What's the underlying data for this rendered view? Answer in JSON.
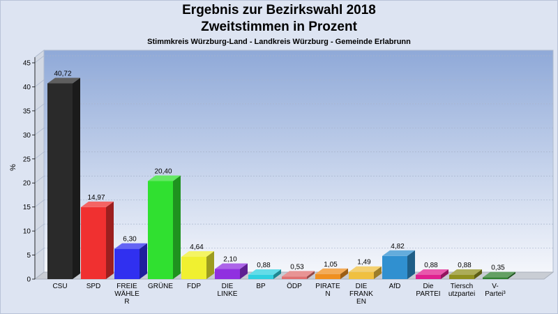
{
  "chart_data": {
    "type": "bar",
    "title": "Ergebnis zur Bezirkswahl 2018",
    "subtitle": "Zweitstimmen in Prozent",
    "subtitle2": "Stimmkreis Würzburg-Land - Landkreis Würzburg - Gemeinde Erlabrunn",
    "ylabel": "%",
    "xlabel": "",
    "ylim": [
      0,
      45
    ],
    "yticks": [
      "0",
      "5",
      "10",
      "15",
      "20",
      "25",
      "30",
      "35",
      "40",
      "45"
    ],
    "grid": true,
    "categories": [
      [
        "CSU"
      ],
      [
        "SPD"
      ],
      [
        "FREIE",
        "WÄHLE",
        "R"
      ],
      [
        "GRÜNE"
      ],
      [
        "FDP"
      ],
      [
        "DIE",
        "LINKE"
      ],
      [
        "BP"
      ],
      [
        "ÖDP"
      ],
      [
        "PIRATE",
        "N"
      ],
      [
        "DIE",
        "FRANK",
        "EN"
      ],
      [
        "AfD"
      ],
      [
        "Die",
        "PARTEI"
      ],
      [
        "Tiersch",
        "utzpartei"
      ],
      [
        "V-",
        "Partei³"
      ]
    ],
    "values": [
      40.72,
      14.97,
      6.3,
      20.4,
      4.64,
      2.1,
      0.88,
      0.53,
      1.05,
      1.49,
      4.82,
      0.88,
      0.88,
      0.35
    ],
    "value_labels": [
      "40,72",
      "14,97",
      "6,30",
      "20,40",
      "4,64",
      "2,10",
      "0,88",
      "0,53",
      "1,05",
      "1,49",
      "4,82",
      "0,88",
      "0,88",
      "0,35"
    ],
    "colors": [
      "#2a2a2a",
      "#f03030",
      "#3030f0",
      "#30e030",
      "#f0f030",
      "#9030e0",
      "#30d0e0",
      "#e07070",
      "#f09020",
      "#f0c040",
      "#3090d0",
      "#e02090",
      "#909020",
      "#308030"
    ]
  }
}
